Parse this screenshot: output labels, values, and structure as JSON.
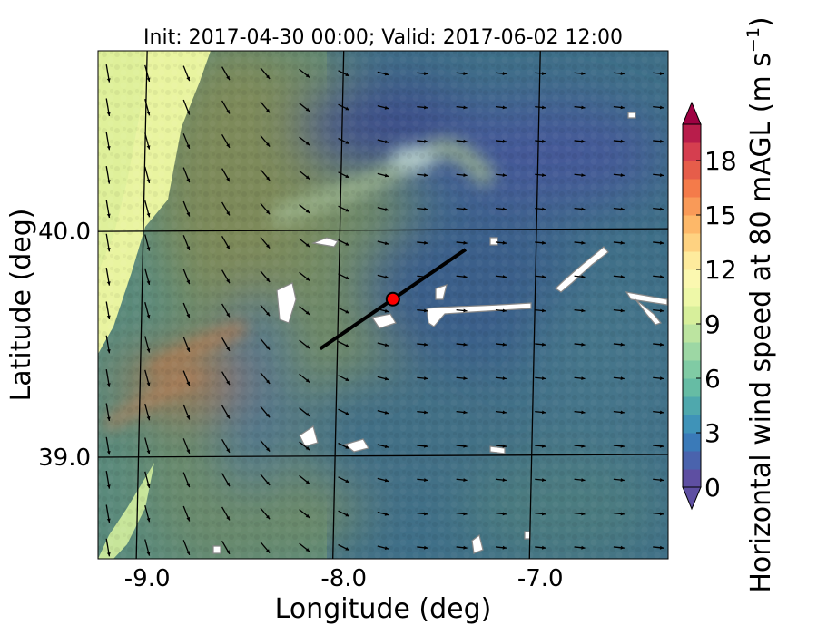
{
  "chart_data": {
    "type": "heatmap",
    "title": "Init: 2017-04-30 00:00; Valid: 2017-06-02 12:00",
    "xlabel": "Longitude (deg)",
    "ylabel": "Latitude (deg)",
    "xlim": [
      -9.25,
      -6.35
    ],
    "ylim": [
      38.55,
      40.8
    ],
    "x_ticks": [
      {
        "value": -9.0,
        "label": "-9.0"
      },
      {
        "value": -8.0,
        "label": "-8.0"
      },
      {
        "value": -7.0,
        "label": "-7.0"
      }
    ],
    "y_ticks": [
      {
        "value": 40.0,
        "label": "40.0"
      },
      {
        "value": 39.0,
        "label": "39.0"
      }
    ],
    "grid": true,
    "colorbar": {
      "label": "Horizontal wind speed at 80 mAGL (m s$^{-1}$)",
      "label_main": "Horizontal wind speed at 80 mAGL (m s",
      "label_sup": "−1",
      "label_close": ")",
      "min": 0,
      "max": 20,
      "extend": "both",
      "ticks": [
        {
          "value": 0,
          "label": "0"
        },
        {
          "value": 3,
          "label": "3"
        },
        {
          "value": 6,
          "label": "6"
        },
        {
          "value": 9,
          "label": "9"
        },
        {
          "value": 12,
          "label": "12"
        },
        {
          "value": 15,
          "label": "15"
        },
        {
          "value": 18,
          "label": "18"
        }
      ],
      "colors": [
        "#5e4fa2",
        "#4a63ad",
        "#3a7ab8",
        "#3f93b8",
        "#4fa8ad",
        "#66bca4",
        "#80cba4",
        "#9dd7a4",
        "#bce4a0",
        "#d7ef9b",
        "#eef8a8",
        "#fbf8b0",
        "#feeb9d",
        "#fed281",
        "#fdb869",
        "#f99a58",
        "#f47b4a",
        "#e65d4a",
        "#d53e4f",
        "#b81d4b",
        "#9e0142"
      ]
    },
    "transect": {
      "start": [
        -8.12,
        39.48
      ],
      "end": [
        -7.38,
        39.92
      ]
    },
    "site": {
      "lon": -7.75,
      "lat": 39.7,
      "color": "#ff0000"
    },
    "wind_vectors": {
      "lon_step": 0.2,
      "lat_step": 0.15
    }
  }
}
